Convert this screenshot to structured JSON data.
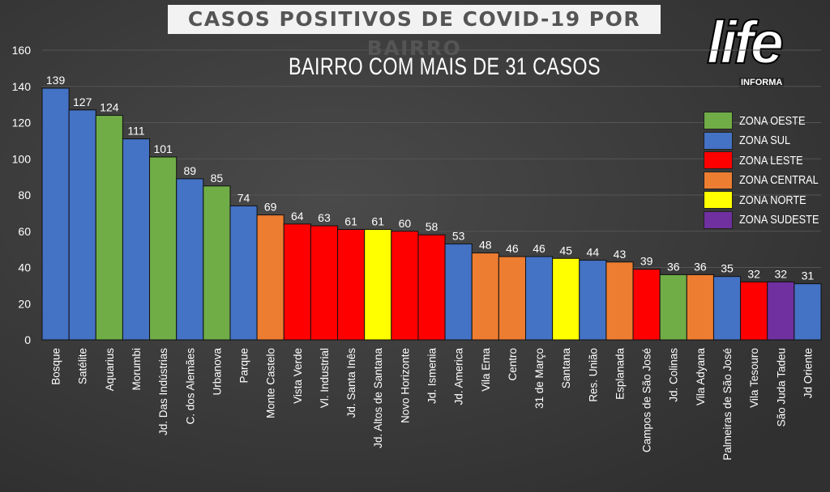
{
  "chart_data": {
    "type": "bar",
    "title": "CASOS POSITIVOS DE COVID-19 POR BAIRRO",
    "subtitle": "BAIRRO COM MAIS DE 31 CASOS",
    "ylim": [
      0,
      160
    ],
    "yticks": [
      0,
      20,
      40,
      60,
      80,
      100,
      120,
      140,
      160
    ],
    "grid": true,
    "legend_position": "top-right",
    "legend": [
      {
        "key": "oeste",
        "label": "ZONA OESTE",
        "color": "#70ad47"
      },
      {
        "key": "sul",
        "label": "ZONA SUL",
        "color": "#4472c4"
      },
      {
        "key": "leste",
        "label": "ZONA LESTE",
        "color": "#ff0000"
      },
      {
        "key": "central",
        "label": "ZONA CENTRAL",
        "color": "#ed7d31"
      },
      {
        "key": "norte",
        "label": "ZONA NORTE",
        "color": "#ffff00"
      },
      {
        "key": "sudeste",
        "label": "ZONA SUDESTE",
        "color": "#7030a0"
      }
    ],
    "categories": [
      "Bosque",
      "Satélite",
      "Aquarius",
      "Morumbi",
      "Jd. Das Indústrias",
      "C. dos Alemães",
      "Urbanova",
      "Parque",
      "Monte Castelo",
      "Vista Verde",
      "Vl. Industrial",
      "Jd. Santa Inês",
      "Jd. Altos de Santana",
      "Novo Horizonte",
      "Jd. Ismenia",
      "Jd. America",
      "Vila Ema",
      "Centro",
      "31 de Março",
      "Santana",
      "Res. União",
      "Esplanada",
      "Campos de São José",
      "Jd. Colinas",
      "Vila Adyana",
      "Palmeiras de São José",
      "Vila Tesouro",
      "São Juda Tadeu",
      "Jd Oriente"
    ],
    "values": [
      139,
      127,
      124,
      111,
      101,
      89,
      85,
      74,
      69,
      64,
      63,
      61,
      61,
      60,
      58,
      53,
      48,
      46,
      46,
      45,
      44,
      43,
      39,
      36,
      36,
      35,
      32,
      32,
      31
    ],
    "zones": [
      "sul",
      "sul",
      "oeste",
      "sul",
      "oeste",
      "sul",
      "oeste",
      "sul",
      "central",
      "leste",
      "leste",
      "leste",
      "norte",
      "leste",
      "leste",
      "sul",
      "central",
      "central",
      "sul",
      "norte",
      "sul",
      "central",
      "leste",
      "oeste",
      "central",
      "sul",
      "leste",
      "sudeste",
      "sul"
    ]
  },
  "logo": {
    "main": "life",
    "sub": "INFORMA"
  }
}
